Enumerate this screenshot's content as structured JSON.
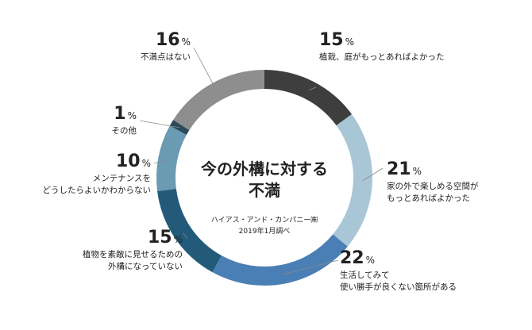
{
  "chart_data": {
    "type": "pie",
    "title_lines": [
      "今の外構に対する",
      "不満"
    ],
    "source_lines": [
      "ハイアス・アンド・カンパニー㈱",
      "2019年1月調べ"
    ],
    "slices": [
      {
        "value": 15,
        "pct_label": "15",
        "sign": "%",
        "lines": [
          "植栽、庭がもっとあればよかった"
        ],
        "color": "#3e3e3e"
      },
      {
        "value": 21,
        "pct_label": "21",
        "sign": "%",
        "lines": [
          "家の外で楽しめる空間が",
          "もっとあればよかった"
        ],
        "color": "#a8c6d6"
      },
      {
        "value": 22,
        "pct_label": "22",
        "sign": "%",
        "lines": [
          "生活してみて",
          "使い勝手が良くない箇所がある"
        ],
        "color": "#4a7fb5"
      },
      {
        "value": 15,
        "pct_label": "15",
        "sign": "%",
        "lines": [
          "植物を素敵に見せるための",
          "外構になっていない"
        ],
        "color": "#235a7a"
      },
      {
        "value": 10,
        "pct_label": "10",
        "sign": "%",
        "lines": [
          "メンテナンスを",
          "どうしたらよいかわからない"
        ],
        "color": "#6b9ab3"
      },
      {
        "value": 1,
        "pct_label": "1",
        "sign": "%",
        "lines": [
          "その他"
        ],
        "color": "#2b4a5a"
      },
      {
        "value": 16,
        "pct_label": "16",
        "sign": "%",
        "lines": [
          "不満点はない"
        ],
        "color": "#8e8e8e"
      }
    ]
  }
}
